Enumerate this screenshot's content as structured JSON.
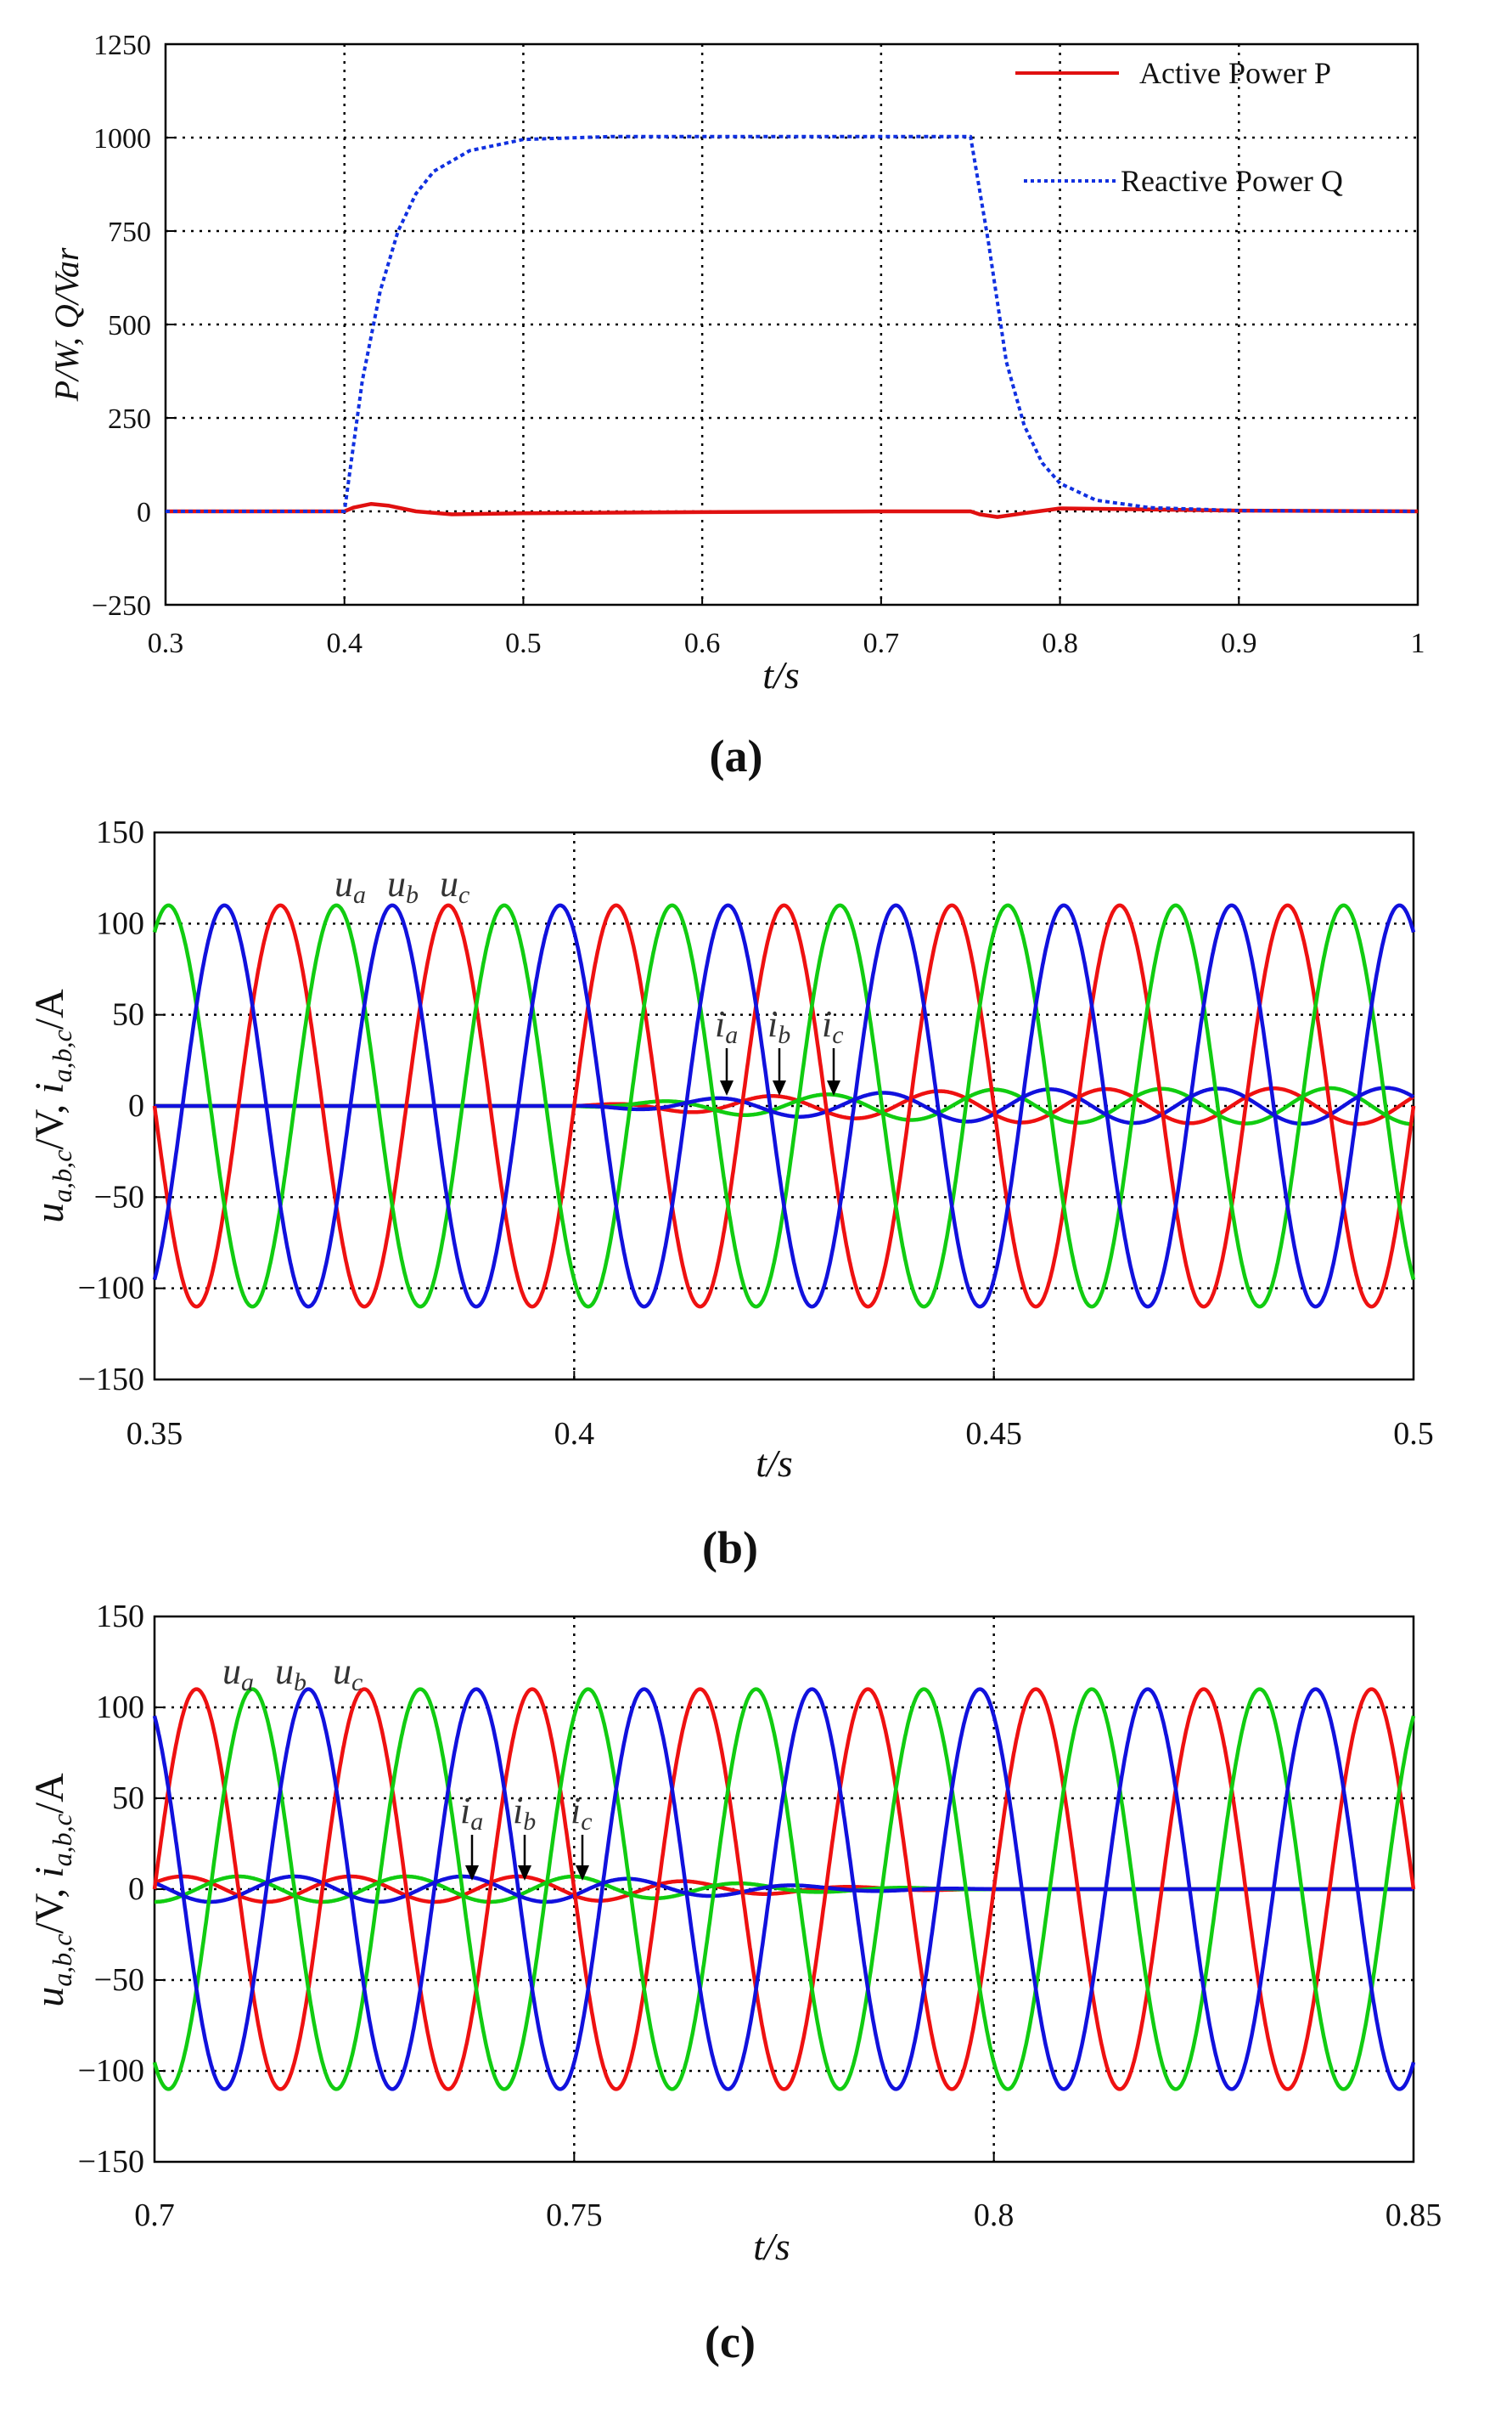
{
  "chart_data": [
    {
      "type": "line",
      "caption": "(a)",
      "xlabel": "t/s",
      "ylabel": "P/W,  Q/Var",
      "xlim": [
        0.3,
        1.0
      ],
      "ylim": [
        -250,
        1250
      ],
      "xticks": [
        "0.3",
        "0.4",
        "0.5",
        "0.6",
        "0.7",
        "0.8",
        "0.9",
        "1"
      ],
      "yticks": [
        "−250",
        "0",
        "250",
        "500",
        "750",
        "1000",
        "1250"
      ],
      "grid": "dotted",
      "legend_position": "top-right",
      "series": [
        {
          "name": "Active Power P",
          "color": "#e01010",
          "style": "solid",
          "x": [
            0.3,
            0.4,
            0.405,
            0.415,
            0.425,
            0.44,
            0.46,
            0.5,
            0.6,
            0.7,
            0.75,
            0.755,
            0.765,
            0.78,
            0.8,
            0.85,
            0.9,
            1.0
          ],
          "y": [
            0,
            0,
            10,
            20,
            15,
            0,
            -8,
            -5,
            -2,
            0,
            0,
            -8,
            -15,
            -5,
            8,
            5,
            2,
            0
          ]
        },
        {
          "name": "Reactive Power Q",
          "color": "#1030e0",
          "style": "dashed",
          "x": [
            0.3,
            0.4,
            0.41,
            0.42,
            0.43,
            0.44,
            0.45,
            0.47,
            0.5,
            0.55,
            0.6,
            0.7,
            0.75,
            0.76,
            0.77,
            0.78,
            0.79,
            0.8,
            0.82,
            0.85,
            0.9,
            1.0
          ],
          "y": [
            0,
            0,
            350,
            590,
            750,
            850,
            910,
            965,
            995,
            1003,
            1003,
            1003,
            1003,
            720,
            400,
            230,
            130,
            75,
            30,
            10,
            2,
            0
          ]
        }
      ]
    },
    {
      "type": "line",
      "caption": "(b)",
      "xlabel": "t/s",
      "ylabel_main": "u",
      "ylabel_main_sub": "a,b,c",
      "ylabel_unit1": "/V,  ",
      "ylabel_second": "i",
      "ylabel_second_sub": "a,b,c",
      "ylabel_unit2": "/A",
      "xlim": [
        0.35,
        0.5
      ],
      "ylim": [
        -150,
        150
      ],
      "xticks": [
        "0.35",
        "0.4",
        "0.45",
        "0.5"
      ],
      "yticks": [
        "−150",
        "−100",
        "−50",
        "0",
        "50",
        "100",
        "150"
      ],
      "grid": "dotted",
      "frequency_hz": 50,
      "voltage_amplitude": 110,
      "current_amplitude": [
        [
          0.35,
          0
        ],
        [
          0.4,
          0
        ],
        [
          0.42,
          5
        ],
        [
          0.45,
          9
        ],
        [
          0.5,
          10
        ]
      ],
      "series": [
        {
          "name": "a",
          "color": "#ee1111",
          "phase_deg": 0
        },
        {
          "name": "b",
          "color": "#11cc11",
          "phase_deg": -120
        },
        {
          "name": "c",
          "color": "#1111dd",
          "phase_deg": 120
        }
      ],
      "voltage_labels": {
        "main": [
          "u",
          "u",
          "u"
        ],
        "sub": [
          "a",
          "b",
          "c"
        ]
      },
      "current_labels": {
        "main": [
          "i",
          "i",
          "i"
        ],
        "sub": [
          "a",
          "b",
          "c"
        ]
      }
    },
    {
      "type": "line",
      "caption": "(c)",
      "xlabel": "t/s",
      "ylabel_main": "u",
      "ylabel_main_sub": "a,b,c",
      "ylabel_unit1": "/V,  ",
      "ylabel_second": "i",
      "ylabel_second_sub": "a,b,c",
      "ylabel_unit2": "/A",
      "xlim": [
        0.7,
        0.85
      ],
      "ylim": [
        -150,
        150
      ],
      "xticks": [
        "0.7",
        "0.75",
        "0.8",
        "0.85"
      ],
      "yticks": [
        "−150",
        "−100",
        "−50",
        "0",
        "50",
        "100",
        "150"
      ],
      "grid": "dotted",
      "frequency_hz": 50,
      "voltage_amplitude": 110,
      "current_amplitude": [
        [
          0.7,
          7
        ],
        [
          0.75,
          7
        ],
        [
          0.765,
          4
        ],
        [
          0.78,
          1.5
        ],
        [
          0.8,
          0
        ],
        [
          0.85,
          0
        ]
      ],
      "series": [
        {
          "name": "a",
          "color": "#ee1111",
          "phase_deg": 0
        },
        {
          "name": "b",
          "color": "#11cc11",
          "phase_deg": -120
        },
        {
          "name": "c",
          "color": "#1111dd",
          "phase_deg": 120
        }
      ],
      "voltage_labels": {
        "main": [
          "u",
          "u",
          "u"
        ],
        "sub": [
          "a",
          "b",
          "c"
        ]
      },
      "current_labels": {
        "main": [
          "i",
          "i",
          "i"
        ],
        "sub": [
          "a",
          "b",
          "c"
        ]
      }
    }
  ]
}
